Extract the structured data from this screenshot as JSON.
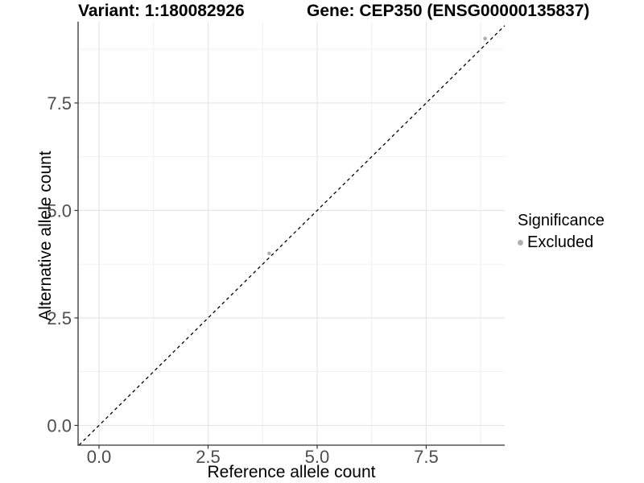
{
  "chart_data": {
    "type": "scatter",
    "title_left": "Variant: 1:180082926",
    "title_right": "Gene: CEP350 (ENSG00000135837)",
    "xlabel": "Reference allele count",
    "ylabel": "Alternative allele count",
    "xlim": [
      -0.48,
      9.3
    ],
    "ylim": [
      -0.46,
      9.39
    ],
    "x_major_ticks": [
      0,
      2.5,
      5,
      7.5
    ],
    "x_tick_labels": [
      "0.0",
      "2.5",
      "5.0",
      "7.5"
    ],
    "x_minor_ticks": [
      1.25,
      3.75,
      6.25,
      8.75
    ],
    "y_major_ticks": [
      0,
      2.5,
      5,
      7.5
    ],
    "y_tick_labels": [
      "0.0",
      "2.5",
      "5.0",
      "7.5"
    ],
    "y_minor_ticks": [
      1.25,
      3.75,
      6.25,
      8.75
    ],
    "grid": true,
    "reference_line": {
      "kind": "abline",
      "intercept": 0,
      "slope": 1,
      "style": "dashed",
      "color": "#000000"
    },
    "series": [
      {
        "name": "Excluded",
        "color": "#b0b0b0",
        "points": [
          {
            "x": 3.9,
            "y": 4.0
          },
          {
            "x": 8.85,
            "y": 9.0
          }
        ]
      }
    ],
    "legend": {
      "title": "Significance",
      "position": "right",
      "items": [
        {
          "label": "Excluded",
          "color": "#b0b0b0"
        }
      ]
    }
  },
  "colors": {
    "grid_major": "#e4e4e4",
    "grid_minor": "#f0f0f0",
    "axis_line": "#333333",
    "tick_text": "#4d4d4d",
    "title_text": "#000000"
  }
}
